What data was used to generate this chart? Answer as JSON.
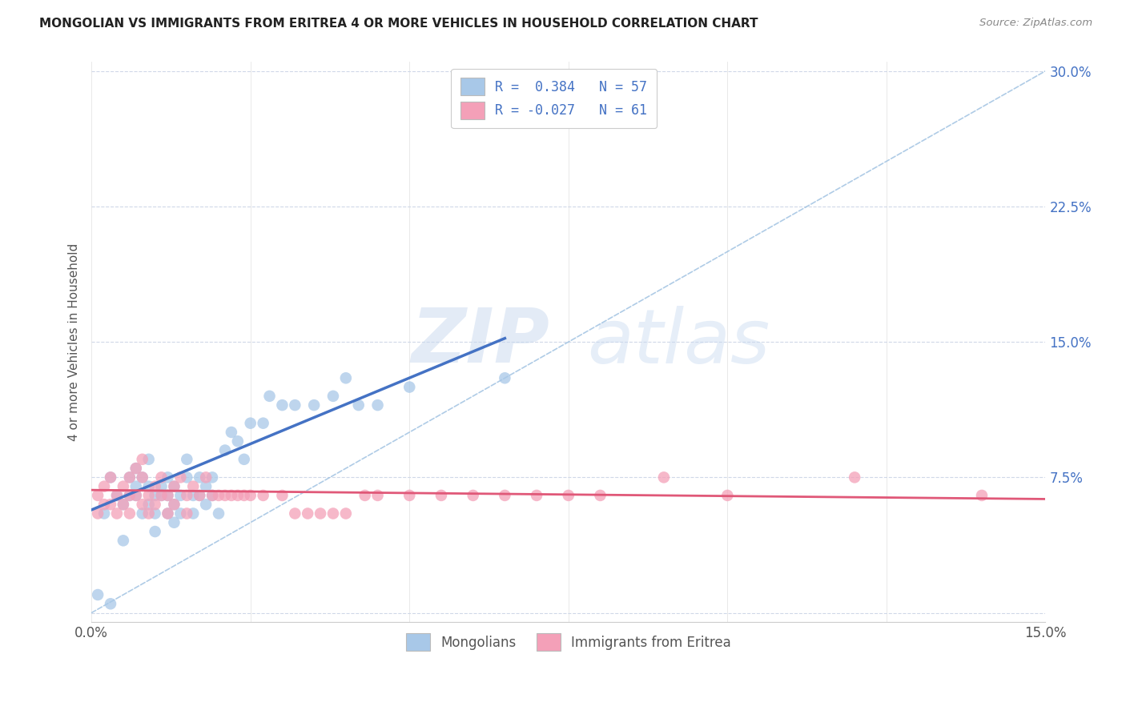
{
  "title": "MONGOLIAN VS IMMIGRANTS FROM ERITREA 4 OR MORE VEHICLES IN HOUSEHOLD CORRELATION CHART",
  "source": "Source: ZipAtlas.com",
  "ylabel": "4 or more Vehicles in Household",
  "xlim": [
    0.0,
    0.15
  ],
  "ylim": [
    -0.005,
    0.305
  ],
  "xticks": [
    0.0,
    0.025,
    0.05,
    0.075,
    0.1,
    0.125,
    0.15
  ],
  "xticklabels": [
    "0.0%",
    "",
    "",
    "",
    "",
    "",
    "15.0%"
  ],
  "yticks": [
    0.0,
    0.075,
    0.15,
    0.225,
    0.3
  ],
  "yticklabels": [
    "",
    "7.5%",
    "15.0%",
    "22.5%",
    "30.0%"
  ],
  "legend_label1": "Mongolians",
  "legend_label2": "Immigrants from Eritrea",
  "color_mongolian": "#a8c8e8",
  "color_eritrea": "#f4a0b8",
  "color_line1": "#4472c4",
  "color_line2": "#e05878",
  "color_dashed": "#9bbfe0",
  "watermark1": "ZIP",
  "watermark2": "atlas",
  "mongolian_x": [
    0.001,
    0.002,
    0.003,
    0.003,
    0.004,
    0.005,
    0.005,
    0.006,
    0.006,
    0.007,
    0.007,
    0.007,
    0.008,
    0.008,
    0.009,
    0.009,
    0.009,
    0.01,
    0.01,
    0.01,
    0.011,
    0.011,
    0.012,
    0.012,
    0.012,
    0.013,
    0.013,
    0.013,
    0.014,
    0.014,
    0.015,
    0.015,
    0.016,
    0.016,
    0.017,
    0.017,
    0.018,
    0.018,
    0.019,
    0.019,
    0.02,
    0.021,
    0.022,
    0.023,
    0.024,
    0.025,
    0.027,
    0.028,
    0.03,
    0.032,
    0.035,
    0.038,
    0.04,
    0.042,
    0.045,
    0.05,
    0.065
  ],
  "mongolian_y": [
    0.01,
    0.055,
    0.005,
    0.075,
    0.065,
    0.06,
    0.04,
    0.075,
    0.065,
    0.08,
    0.07,
    0.065,
    0.075,
    0.055,
    0.085,
    0.07,
    0.06,
    0.065,
    0.055,
    0.045,
    0.07,
    0.065,
    0.075,
    0.065,
    0.055,
    0.07,
    0.06,
    0.05,
    0.065,
    0.055,
    0.085,
    0.075,
    0.065,
    0.055,
    0.075,
    0.065,
    0.07,
    0.06,
    0.075,
    0.065,
    0.055,
    0.09,
    0.1,
    0.095,
    0.085,
    0.105,
    0.105,
    0.12,
    0.115,
    0.115,
    0.115,
    0.12,
    0.13,
    0.115,
    0.115,
    0.125,
    0.13
  ],
  "eritrea_x": [
    0.001,
    0.001,
    0.002,
    0.002,
    0.003,
    0.003,
    0.004,
    0.004,
    0.005,
    0.005,
    0.006,
    0.006,
    0.006,
    0.007,
    0.007,
    0.008,
    0.008,
    0.008,
    0.009,
    0.009,
    0.01,
    0.01,
    0.011,
    0.011,
    0.012,
    0.012,
    0.013,
    0.013,
    0.014,
    0.015,
    0.015,
    0.016,
    0.017,
    0.018,
    0.019,
    0.02,
    0.021,
    0.022,
    0.023,
    0.024,
    0.025,
    0.027,
    0.03,
    0.032,
    0.034,
    0.036,
    0.038,
    0.04,
    0.043,
    0.045,
    0.05,
    0.055,
    0.06,
    0.065,
    0.07,
    0.075,
    0.08,
    0.09,
    0.1,
    0.12,
    0.14
  ],
  "eritrea_y": [
    0.065,
    0.055,
    0.07,
    0.06,
    0.075,
    0.06,
    0.065,
    0.055,
    0.07,
    0.06,
    0.075,
    0.065,
    0.055,
    0.08,
    0.065,
    0.085,
    0.075,
    0.06,
    0.065,
    0.055,
    0.07,
    0.06,
    0.075,
    0.065,
    0.065,
    0.055,
    0.07,
    0.06,
    0.075,
    0.065,
    0.055,
    0.07,
    0.065,
    0.075,
    0.065,
    0.065,
    0.065,
    0.065,
    0.065,
    0.065,
    0.065,
    0.065,
    0.065,
    0.055,
    0.055,
    0.055,
    0.055,
    0.055,
    0.065,
    0.065,
    0.065,
    0.065,
    0.065,
    0.065,
    0.065,
    0.065,
    0.065,
    0.075,
    0.065,
    0.075,
    0.065
  ],
  "line1_x0": 0.0,
  "line1_y0": 0.057,
  "line1_x1": 0.065,
  "line1_y1": 0.152,
  "line2_x0": 0.0,
  "line2_y0": 0.068,
  "line2_x1": 0.15,
  "line2_y1": 0.063
}
